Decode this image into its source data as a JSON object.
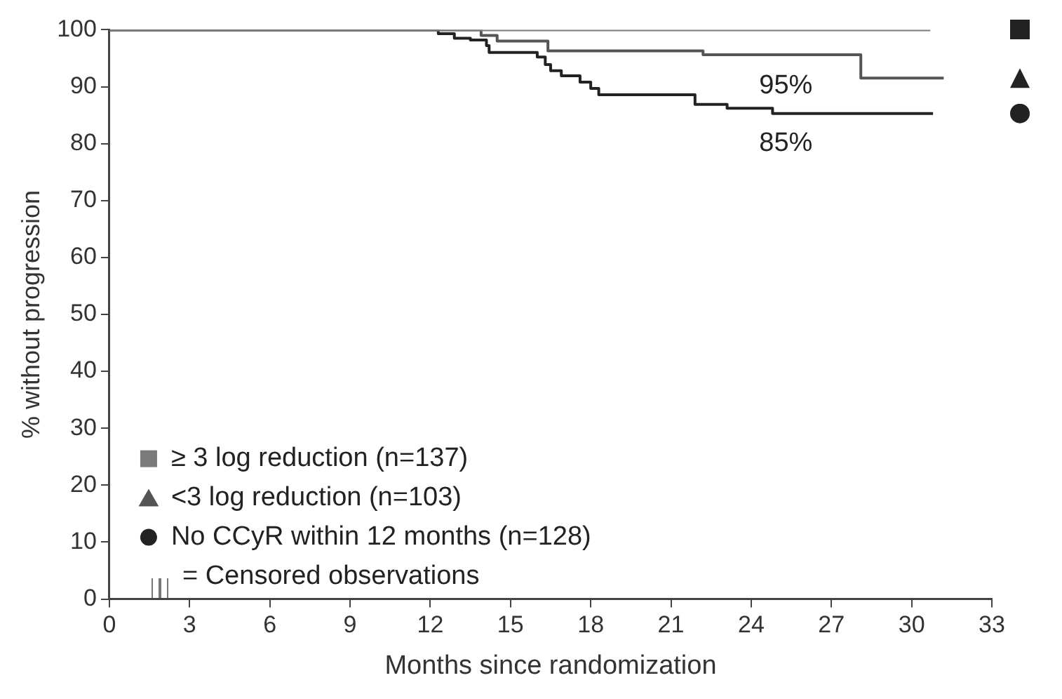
{
  "chart_data": {
    "type": "step",
    "xlabel": "Months since randomization",
    "ylabel": "% without progression",
    "xlim": [
      0,
      33
    ],
    "xticks": [
      0,
      3,
      6,
      9,
      12,
      15,
      18,
      21,
      24,
      27,
      30,
      33
    ],
    "ylim": [
      0,
      100
    ],
    "yticks": [
      0,
      10,
      20,
      30,
      40,
      50,
      60,
      70,
      80,
      90,
      100
    ],
    "legend": "bottom left",
    "series": [
      {
        "name": "≥ 3 log reduction (n=137)",
        "color": "#7a7a7a",
        "x": [
          0,
          30.7
        ],
        "values": [
          100,
          100
        ]
      },
      {
        "name": "<3 log reduction (n=103)",
        "color": "#555555",
        "x": [
          0,
          13.9,
          14.5,
          16.4,
          22.2,
          28.1,
          31.2
        ],
        "values": [
          100,
          99,
          98,
          96.3,
          95.6,
          91.5,
          91.5
        ]
      },
      {
        "name": "No CCyR within 12 months (n=128)",
        "color": "#222222",
        "x": [
          0,
          12.3,
          12.9,
          13.5,
          14.1,
          14.2,
          16,
          16.3,
          16.5,
          16.9,
          17.6,
          18,
          18.3,
          21.9,
          23.1,
          24.8,
          30.8
        ],
        "values": [
          100,
          99.3,
          98.5,
          98.2,
          97.2,
          96,
          95.2,
          93.9,
          92.8,
          91.9,
          90.8,
          89.7,
          88.6,
          86.9,
          86.2,
          85.3,
          85.3
        ]
      }
    ],
    "annotations": [
      {
        "text": "95%",
        "x": 24.3,
        "y": 95
      },
      {
        "text": "85%",
        "x": 24.3,
        "y": 85
      },
      "= Censored observations"
    ]
  }
}
